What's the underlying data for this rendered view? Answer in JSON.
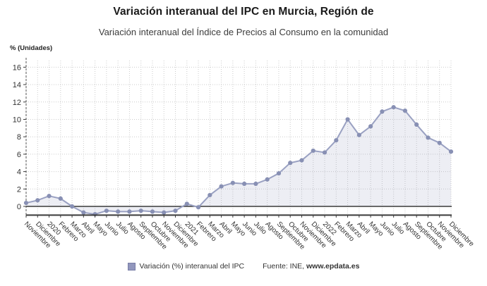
{
  "header": {
    "title": "Variación interanual del IPC en Murcia, Región de",
    "subtitle": "Variación interanual del Índice de Precios al Consumo en la comunidad"
  },
  "footer": {
    "legend_label": "Variación (%) interanual del IPC",
    "source_prefix": "Fuente: INE, ",
    "source_site": "www.epdata.es"
  },
  "colors": {
    "marker": "#8890b4",
    "line": "#9aa1c2",
    "area_fill": "rgba(140,147,184,0.16)",
    "grid": "#cccccc",
    "axis": "#3a3a3a",
    "tick_text": "#333333",
    "legend_swatch": "#9297bd",
    "legend_swatch_border": "#787da6"
  },
  "chart_data": {
    "type": "area",
    "title": "Variación interanual del IPC en Murcia, Región de",
    "subtitle": "Variación interanual del Índice de Precios al Consumo en la comunidad",
    "ylabel": "% (Unidades)",
    "xlabel": "",
    "grid": true,
    "legend_position": "bottom",
    "ylim": [
      -1,
      16.8
    ],
    "yticks": [
      0,
      2,
      4,
      6,
      8,
      10,
      12,
      14,
      16
    ],
    "categories": [
      "Noviembre",
      "Diciembre",
      "2020",
      "Febrero",
      "Marzo",
      "Abril",
      "Mayo",
      "Junio",
      "Julio",
      "Agosto",
      "Septiembre",
      "Octubre",
      "Noviembre",
      "Diciembre",
      "2021",
      "Febrero",
      "Marzo",
      "Abril",
      "Mayo",
      "Junio",
      "Julio",
      "Agosto",
      "Septiembre",
      "Octubre",
      "Noviembre",
      "Diciembre",
      "2022",
      "Febrero",
      "Marzo",
      "Abril",
      "Mayo",
      "Junio",
      "Julio",
      "Agosto",
      "Septiembre",
      "Octubre",
      "Noviembre",
      "Diciembre"
    ],
    "series": [
      {
        "name": "Variación (%) interanual del IPC",
        "values": [
          0.4,
          0.7,
          1.2,
          0.9,
          0.0,
          -0.7,
          -0.9,
          -0.5,
          -0.6,
          -0.6,
          -0.5,
          -0.6,
          -0.7,
          -0.5,
          0.3,
          -0.1,
          1.3,
          2.3,
          2.7,
          2.6,
          2.6,
          3.1,
          3.8,
          5.0,
          5.3,
          6.4,
          6.2,
          7.6,
          10.0,
          8.2,
          9.2,
          10.9,
          11.4,
          11.0,
          9.4,
          7.9,
          7.3,
          6.3
        ]
      }
    ]
  }
}
